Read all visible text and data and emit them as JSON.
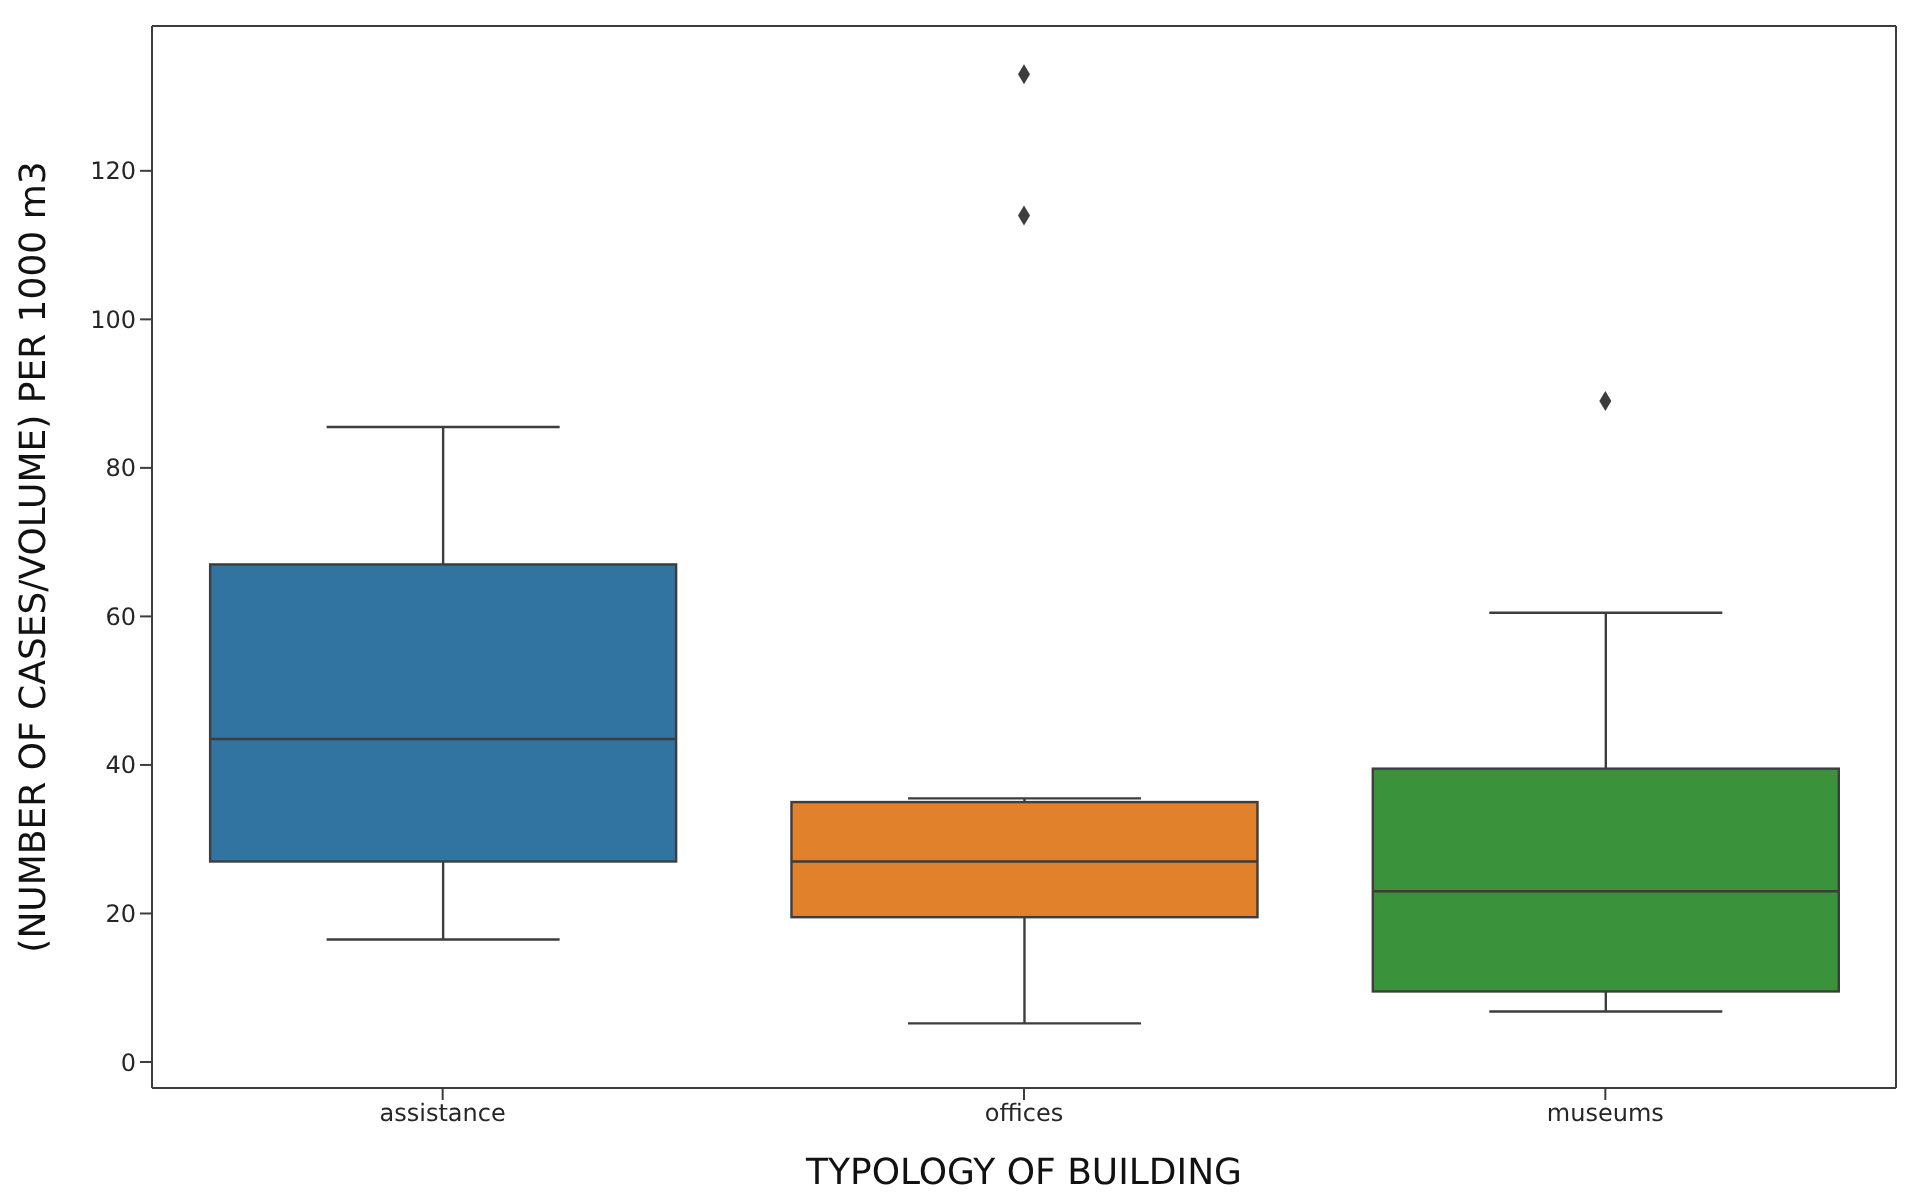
{
  "chart_data": {
    "type": "box",
    "xlabel": "TYPOLOGY OF BUILDING",
    "ylabel": "(NUMBER OF CASES/VOLUME) PER 1000 m3",
    "categories": [
      "assistance",
      "offices",
      "museums"
    ],
    "colors": [
      "#3274a1",
      "#e1812c",
      "#3a923a"
    ],
    "boxes": [
      {
        "low": 16.5,
        "q1": 27,
        "median": 43.5,
        "q3": 67,
        "high": 85.5
      },
      {
        "low": 5.2,
        "q1": 19.5,
        "median": 27,
        "q3": 35,
        "high": 35.5,
        "outliers": [
          114,
          133
        ]
      },
      {
        "low": 6.8,
        "q1": 9.5,
        "median": 23,
        "q3": 39.5,
        "high": 60.5,
        "outliers": [
          89
        ]
      }
    ],
    "marker": "diamond",
    "ylim": [
      -3.5,
      139.5
    ],
    "yticks": [
      0,
      20,
      40,
      60,
      80,
      100,
      120
    ]
  }
}
